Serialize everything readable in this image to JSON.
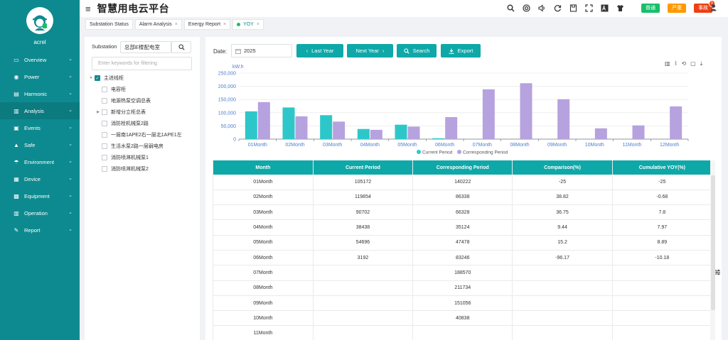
{
  "user": {
    "name": "acrel"
  },
  "app": {
    "title": "智慧用电云平台"
  },
  "nav": [
    {
      "label": "Overview",
      "icon": "monitor-icon",
      "glyph": "▭"
    },
    {
      "label": "Power",
      "icon": "power-icon",
      "glyph": "◉"
    },
    {
      "label": "Harmonic",
      "icon": "harmonic-icon",
      "glyph": "▤"
    },
    {
      "label": "Analysis",
      "icon": "analysis-icon",
      "glyph": "▥"
    },
    {
      "label": "Events",
      "icon": "events-icon",
      "glyph": "▣"
    },
    {
      "label": "Safe",
      "icon": "safe-icon",
      "glyph": "▲"
    },
    {
      "label": "Environment",
      "icon": "environment-icon",
      "glyph": "☂"
    },
    {
      "label": "Device",
      "icon": "device-icon",
      "glyph": "▦"
    },
    {
      "label": "Equipment",
      "icon": "equipment-icon",
      "glyph": "▩"
    },
    {
      "label": "Operation",
      "icon": "operation-icon",
      "glyph": "▥"
    },
    {
      "label": "Report",
      "icon": "report-icon",
      "glyph": "✎"
    }
  ],
  "topbar": {
    "badges": [
      {
        "label": "普通",
        "color": "green"
      },
      {
        "label": "严重",
        "color": "orange"
      },
      {
        "label": "事故",
        "color": "red",
        "count": "0"
      }
    ]
  },
  "tabs": [
    {
      "label": "Substation Status",
      "closable": false
    },
    {
      "label": "Alarm Analysis",
      "closable": true
    },
    {
      "label": "Energy Report",
      "closable": true
    },
    {
      "label": "YOY",
      "closable": true,
      "active": true
    }
  ],
  "left": {
    "heading": "Substation",
    "substation": "总部E楼配电室",
    "filter_placeholder": "Enter keywords for filtering",
    "tree": [
      {
        "label": "主进线柜",
        "level": 0,
        "checked": true,
        "expandable": true
      },
      {
        "label": "电容柜",
        "level": 1
      },
      {
        "label": "地源热泵空调总表",
        "level": 1
      },
      {
        "label": "新增分立柜总表",
        "level": 1,
        "expandable": true
      },
      {
        "label": "消防栓机械泵2路",
        "level": 1
      },
      {
        "label": "一层南1APE2右一层北1APE1左",
        "level": 1
      },
      {
        "label": "生活水泵2路一层弱电房",
        "level": 1
      },
      {
        "label": "消防喷淋机械泵1",
        "level": 1
      },
      {
        "label": "消防喷淋机械泵2",
        "level": 1
      }
    ]
  },
  "main": {
    "date_label": "Date:",
    "year": "2025",
    "buttons": {
      "last_year": "Last Year",
      "next_year": "Next Year",
      "search": "Search",
      "export": "Export"
    }
  },
  "chart_data": {
    "type": "bar",
    "ylabel": "kW.h",
    "ylim": [
      0,
      250000
    ],
    "yticks": [
      "0",
      "50,000",
      "100,000",
      "150,000",
      "200,000",
      "250,000"
    ],
    "categories": [
      "01Month",
      "02Month",
      "03Month",
      "04Month",
      "05Month",
      "06Month",
      "07Month",
      "08Month",
      "09Month",
      "10Month",
      "11Month",
      "12Month"
    ],
    "series": [
      {
        "name": "Current Period",
        "color": "#2ec7c9",
        "values": [
          105172,
          119854,
          90702,
          38438,
          54696,
          3192,
          0,
          0,
          0,
          0,
          0,
          0
        ]
      },
      {
        "name": "Corresponding Period",
        "color": "#b6a2de",
        "values": [
          140222,
          86338,
          66328,
          35124,
          47478,
          83246,
          188570,
          211734,
          151056,
          40838,
          52000,
          124000
        ]
      }
    ],
    "legend_position": "bottom-center",
    "grid": true
  },
  "table": {
    "columns": [
      "Month",
      "Current Period",
      "Corresponding Period",
      "Comparison(%)",
      "Cumulative YOY(%)"
    ],
    "rows": [
      [
        "01Month",
        "105172",
        "140222",
        "-25",
        "-25"
      ],
      [
        "02Month",
        "119854",
        "86338",
        "38.82",
        "-0.68"
      ],
      [
        "03Month",
        "90702",
        "66328",
        "36.75",
        "7.8"
      ],
      [
        "04Month",
        "38438",
        "35124",
        "9.44",
        "7.97"
      ],
      [
        "05Month",
        "54696",
        "47478",
        "15.2",
        "8.89"
      ],
      [
        "06Month",
        "3192",
        "83246",
        "-96.17",
        "-10.18"
      ],
      [
        "07Month",
        "",
        "188570",
        "",
        ""
      ],
      [
        "08Month",
        "",
        "211734",
        "",
        ""
      ],
      [
        "09Month",
        "",
        "151056",
        "",
        ""
      ],
      [
        "10Month",
        "",
        "40838",
        "",
        ""
      ],
      [
        "11Month",
        "",
        "",
        "",
        ""
      ]
    ]
  }
}
